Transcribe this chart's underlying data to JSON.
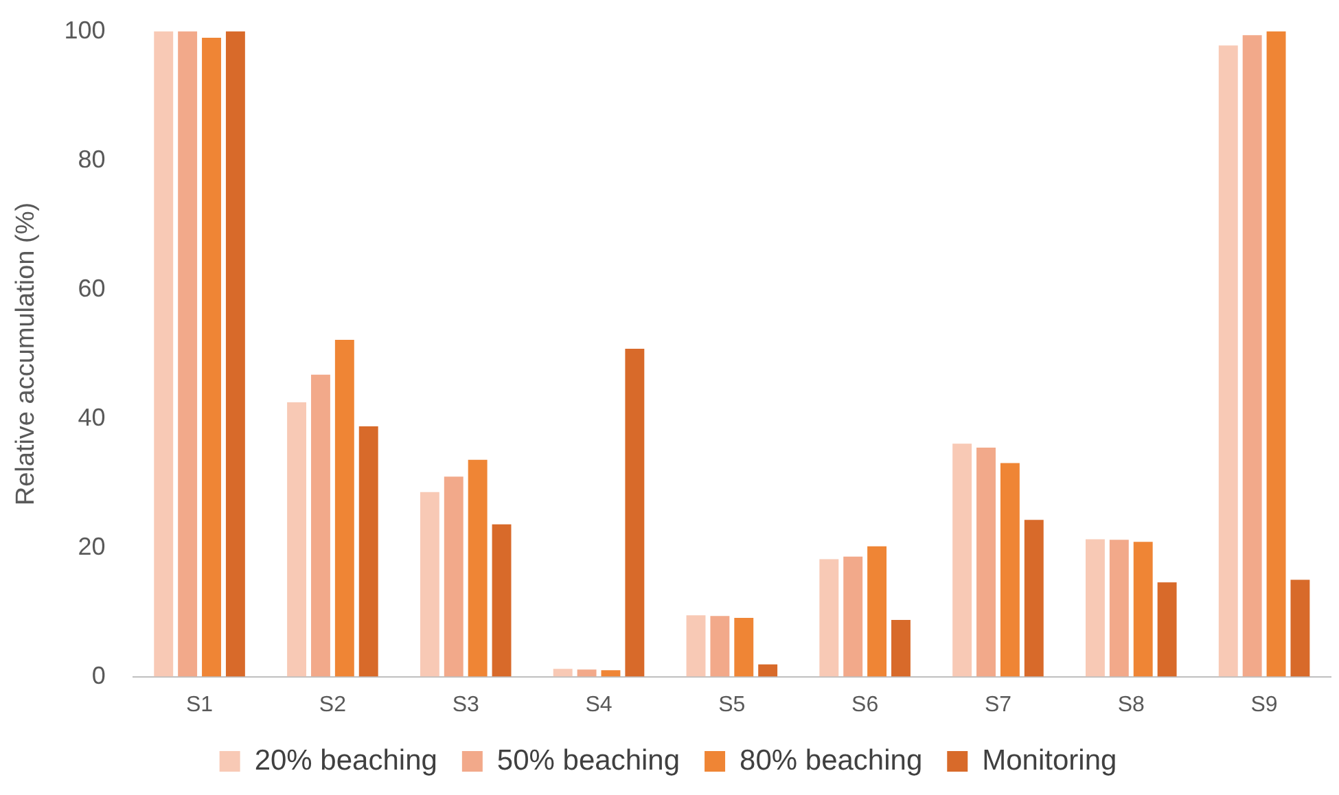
{
  "chart_data": {
    "type": "bar",
    "ylabel": "Relative accumulation (%)",
    "categories": [
      "S1",
      "S2",
      "S3",
      "S4",
      "S5",
      "S6",
      "S7",
      "S8",
      "S9"
    ],
    "series": [
      {
        "name": "20% beaching",
        "color": "#f8c9b5",
        "values": [
          100,
          42.5,
          28.6,
          1.2,
          9.5,
          18.2,
          36.1,
          21.3,
          97.8
        ]
      },
      {
        "name": "50% beaching",
        "color": "#f2a98a",
        "values": [
          100,
          46.8,
          31.0,
          1.1,
          9.4,
          18.6,
          35.5,
          21.2,
          99.4
        ]
      },
      {
        "name": "80% beaching",
        "color": "#ef8535",
        "values": [
          99.0,
          52.2,
          33.6,
          1.0,
          9.1,
          20.2,
          33.1,
          20.9,
          100
        ]
      },
      {
        "name": "Monitoring",
        "color": "#d86a2a",
        "values": [
          100,
          38.8,
          23.6,
          50.8,
          1.9,
          8.8,
          24.3,
          14.6,
          15.0
        ]
      }
    ],
    "ylim": [
      0,
      100
    ],
    "yticks": [
      0,
      20,
      40,
      60,
      80,
      100
    ],
    "grid": false,
    "legend": "bottom"
  }
}
